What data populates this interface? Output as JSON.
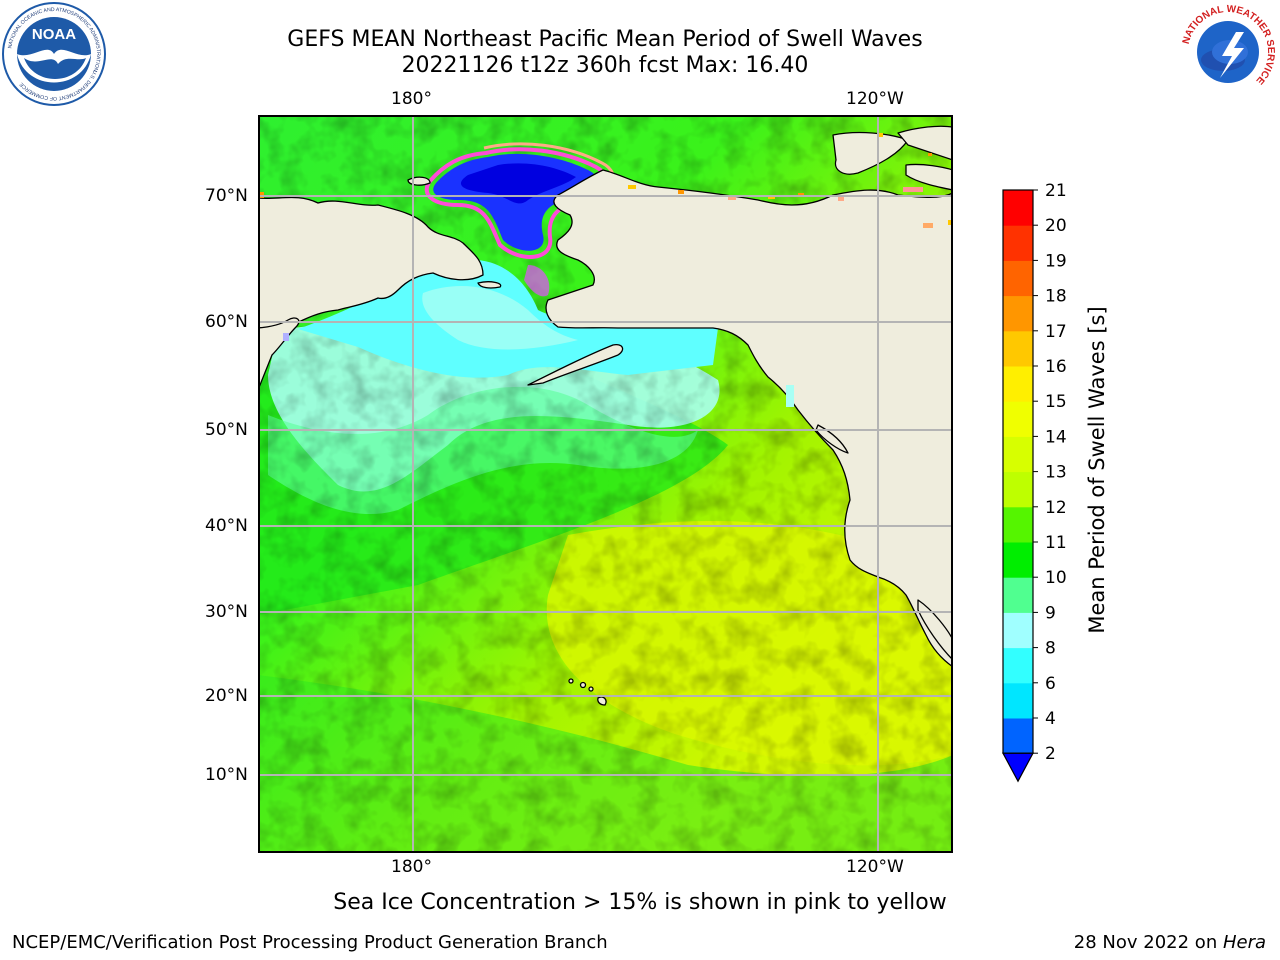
{
  "header": {
    "title_line1": "GEFS MEAN Northeast Pacific Mean Period of Swell Waves",
    "title_line2": "20221126 t12z 360h fcst   Max: 16.40"
  },
  "logos": {
    "left": {
      "name": "NOAA",
      "ring_text": "NATIONAL OCEANIC AND ATMOSPHERIC ADMINISTRATION",
      "bottom_text": "U.S. DEPARTMENT OF COMMERCE",
      "colors": {
        "sky": "#1e5aa8",
        "gull": "#ffffff",
        "ring": "#ffffff"
      }
    },
    "right": {
      "name": "NATIONAL WEATHER SERVICE",
      "colors": {
        "ring_text": "#d32020",
        "disk": "#1e64c8",
        "cloud": "#2864c8"
      }
    }
  },
  "map": {
    "longitude_labels": [
      "180°",
      "120°W"
    ],
    "latitude_labels": [
      "70°N",
      "60°N",
      "50°N",
      "40°N",
      "30°N",
      "20°N",
      "10°N"
    ],
    "colors": {
      "land": "#efeddd",
      "coast": "#000000",
      "grid": "#b4b4b4",
      "frame": "#000000"
    },
    "ice_note": "Sea Ice Concentration > 15% is shown in pink to yellow"
  },
  "colorbar": {
    "title": "Mean Period of Swell Waves [s]",
    "tick_labels": [
      "2",
      "4",
      "6",
      "8",
      "9",
      "10",
      "11",
      "12",
      "13",
      "14",
      "15",
      "16",
      "17",
      "18",
      "19",
      "20",
      "21"
    ],
    "levels": [
      {
        "from": 2,
        "to": 4,
        "color": "#0064ff"
      },
      {
        "from": 4,
        "to": 6,
        "color": "#00e6ff"
      },
      {
        "from": 6,
        "to": 8,
        "color": "#32ffff"
      },
      {
        "from": 8,
        "to": 9,
        "color": "#a0ffff"
      },
      {
        "from": 9,
        "to": 10,
        "color": "#50ff90"
      },
      {
        "from": 10,
        "to": 11,
        "color": "#00ee00"
      },
      {
        "from": 11,
        "to": 12,
        "color": "#55f500"
      },
      {
        "from": 12,
        "to": 13,
        "color": "#beff00"
      },
      {
        "from": 13,
        "to": 14,
        "color": "#d7ff00"
      },
      {
        "from": 14,
        "to": 15,
        "color": "#f0ff00"
      },
      {
        "from": 15,
        "to": 16,
        "color": "#ffef00"
      },
      {
        "from": 16,
        "to": 17,
        "color": "#ffc800"
      },
      {
        "from": 17,
        "to": 18,
        "color": "#ff9600"
      },
      {
        "from": 18,
        "to": 19,
        "color": "#ff6400"
      },
      {
        "from": 19,
        "to": 20,
        "color": "#ff3200"
      },
      {
        "from": 20,
        "to": 21,
        "color": "#ff0000"
      }
    ],
    "under_color": "#0000ff"
  },
  "footer": {
    "left": "NCEP/EMC/Verification Post Processing Product Generation Branch",
    "right_prefix": "28 Nov 2022 on ",
    "right_host": "Hera"
  }
}
